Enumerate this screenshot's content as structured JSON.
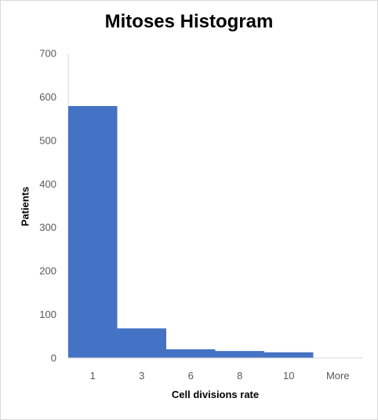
{
  "chart_data": {
    "type": "bar",
    "title": "Mitoses Histogram",
    "xlabel": "Cell divisions rate",
    "ylabel": "Patients",
    "categories": [
      "1",
      "3",
      "6",
      "8",
      "10",
      "More"
    ],
    "values": [
      579,
      68,
      20,
      16,
      13,
      0
    ],
    "ylim": [
      0,
      700
    ],
    "yticks": [
      "0",
      "100",
      "200",
      "300",
      "400",
      "500",
      "600",
      "700"
    ],
    "grid": false,
    "legend": "none",
    "bar_color": "#4472c4"
  }
}
